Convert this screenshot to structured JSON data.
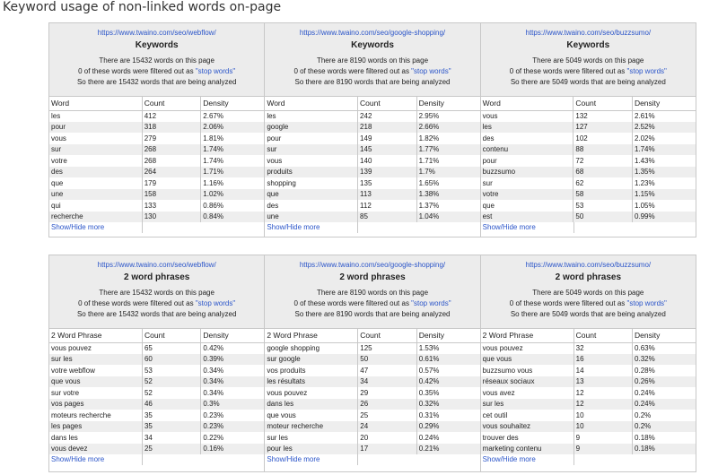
{
  "page_title": "Keyword usage of non-linked words on-page",
  "stop_words_link": "\"stop words\"",
  "show_hide": "Show/Hide more",
  "colors": {
    "link": "#2b55c9",
    "header_bg": "#ececec",
    "stripe": "#eeeeee"
  },
  "sections": [
    {
      "heading": "Keywords",
      "col_word": "Word",
      "col_count": "Count",
      "col_density": "Density",
      "panels": [
        {
          "url": "https://www.twaino.com/seo/webflow/",
          "line1": "There are 15432 words on this page",
          "line2_pre": "0 of these words were filtered out as ",
          "line3": "So there are 15432 words that are being analyzed",
          "rows": [
            [
              "les",
              "412",
              "2.67%"
            ],
            [
              "pour",
              "318",
              "2.06%"
            ],
            [
              "vous",
              "279",
              "1.81%"
            ],
            [
              "sur",
              "268",
              "1.74%"
            ],
            [
              "votre",
              "268",
              "1.74%"
            ],
            [
              "des",
              "264",
              "1.71%"
            ],
            [
              "que",
              "179",
              "1.16%"
            ],
            [
              "une",
              "158",
              "1.02%"
            ],
            [
              "qui",
              "133",
              "0.86%"
            ],
            [
              "recherche",
              "130",
              "0.84%"
            ]
          ]
        },
        {
          "url": "https://www.twaino.com/seo/google-shopping/",
          "line1": "There are 8190 words on this page",
          "line2_pre": "0 of these words were filtered out as ",
          "line3": "So there are 8190 words that are being analyzed",
          "rows": [
            [
              "les",
              "242",
              "2.95%"
            ],
            [
              "google",
              "218",
              "2.66%"
            ],
            [
              "pour",
              "149",
              "1.82%"
            ],
            [
              "sur",
              "145",
              "1.77%"
            ],
            [
              "vous",
              "140",
              "1.71%"
            ],
            [
              "produits",
              "139",
              "1.7%"
            ],
            [
              "shopping",
              "135",
              "1.65%"
            ],
            [
              "que",
              "113",
              "1.38%"
            ],
            [
              "des",
              "112",
              "1.37%"
            ],
            [
              "une",
              "85",
              "1.04%"
            ]
          ]
        },
        {
          "url": "https://www.twaino.com/seo/buzzsumo/",
          "line1": "There are 5049 words on this page",
          "line2_pre": "0 of these words were filtered out as ",
          "line3": "So there are 5049 words that are being analyzed",
          "rows": [
            [
              "vous",
              "132",
              "2.61%"
            ],
            [
              "les",
              "127",
              "2.52%"
            ],
            [
              "des",
              "102",
              "2.02%"
            ],
            [
              "contenu",
              "88",
              "1.74%"
            ],
            [
              "pour",
              "72",
              "1.43%"
            ],
            [
              "buzzsumo",
              "68",
              "1.35%"
            ],
            [
              "sur",
              "62",
              "1.23%"
            ],
            [
              "votre",
              "58",
              "1.15%"
            ],
            [
              "que",
              "53",
              "1.05%"
            ],
            [
              "est",
              "50",
              "0.99%"
            ]
          ]
        }
      ]
    },
    {
      "heading": "2 word phrases",
      "col_word": "2 Word Phrase",
      "col_count": "Count",
      "col_density": "Density",
      "panels": [
        {
          "url": "https://www.twaino.com/seo/webflow/",
          "line1": "There are 15432 words on this page",
          "line2_pre": "0 of these words were filtered out as ",
          "line3": "So there are 15432 words that are being analyzed",
          "rows": [
            [
              "vous pouvez",
              "65",
              "0.42%"
            ],
            [
              "sur les",
              "60",
              "0.39%"
            ],
            [
              "votre webflow",
              "53",
              "0.34%"
            ],
            [
              "que vous",
              "52",
              "0.34%"
            ],
            [
              "sur votre",
              "52",
              "0.34%"
            ],
            [
              "vos pages",
              "46",
              "0.3%"
            ],
            [
              "moteurs recherche",
              "35",
              "0.23%"
            ],
            [
              "les pages",
              "35",
              "0.23%"
            ],
            [
              "dans les",
              "34",
              "0.22%"
            ],
            [
              "vous devez",
              "25",
              "0.16%"
            ]
          ]
        },
        {
          "url": "https://www.twaino.com/seo/google-shopping/",
          "line1": "There are 8190 words on this page",
          "line2_pre": "0 of these words were filtered out as ",
          "line3": "So there are 8190 words that are being analyzed",
          "rows": [
            [
              "google shopping",
              "125",
              "1.53%"
            ],
            [
              "sur google",
              "50",
              "0.61%"
            ],
            [
              "vos produits",
              "47",
              "0.57%"
            ],
            [
              "les résultats",
              "34",
              "0.42%"
            ],
            [
              "vous pouvez",
              "29",
              "0.35%"
            ],
            [
              "dans les",
              "26",
              "0.32%"
            ],
            [
              "que vous",
              "25",
              "0.31%"
            ],
            [
              "moteur recherche",
              "24",
              "0.29%"
            ],
            [
              "sur les",
              "20",
              "0.24%"
            ],
            [
              "pour les",
              "17",
              "0.21%"
            ]
          ]
        },
        {
          "url": "https://www.twaino.com/seo/buzzsumo/",
          "line1": "There are 5049 words on this page",
          "line2_pre": "0 of these words were filtered out as ",
          "line3": "So there are 5049 words that are being analyzed",
          "rows": [
            [
              "vous pouvez",
              "32",
              "0.63%"
            ],
            [
              "que vous",
              "16",
              "0.32%"
            ],
            [
              "buzzsumo vous",
              "14",
              "0.28%"
            ],
            [
              "réseaux sociaux",
              "13",
              "0.26%"
            ],
            [
              "vous avez",
              "12",
              "0.24%"
            ],
            [
              "sur les",
              "12",
              "0.24%"
            ],
            [
              "cet outil",
              "10",
              "0.2%"
            ],
            [
              "vous souhaitez",
              "10",
              "0.2%"
            ],
            [
              "trouver des",
              "9",
              "0.18%"
            ],
            [
              "marketing contenu",
              "9",
              "0.18%"
            ]
          ]
        }
      ]
    }
  ]
}
